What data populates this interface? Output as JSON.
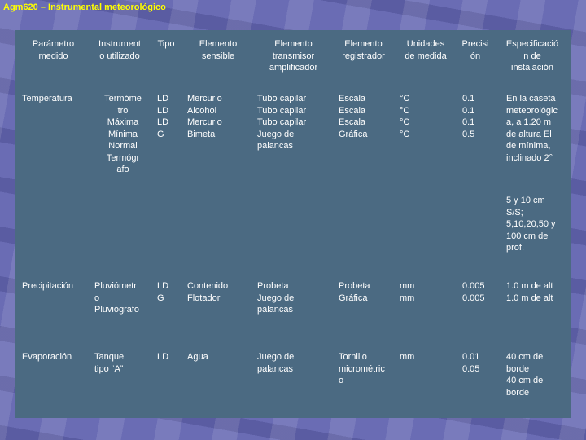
{
  "title": "Agm620 – Instrumental meteorológico",
  "headers": {
    "parametro": "Parámetro\nmedido",
    "instrumento": "Instrument\no utilizado",
    "tipo": "Tipo",
    "elemento_sensible": "Elemento\nsensible",
    "elemento_transmisor": "Elemento\ntransmisor\namplificador",
    "elemento_registrador": "Elemento\nregistrador",
    "unidades": "Unidades\nde medida",
    "precision": "Precisi\nón",
    "especificacion": "Especificació\nn de\ninstalación"
  },
  "rows": [
    {
      "parametro": "Temperatura",
      "instrumento": "  Termóme\ntro\nMáxima\nMínima\nNormal\nTermógr\nafo",
      "tipo": "LD\nLD\nLD\nG",
      "elemento_sensible": "Mercurio\nAlcohol\nMercurio\nBimetal",
      "elemento_transmisor": "Tubo capilar\nTubo capilar\nTubo capilar\nJuego de\npalancas",
      "elemento_registrador": "Escala\nEscala\nEscala\nGráfica",
      "unidades": "°C\n°C\n°C\n°C",
      "precision": "0.1\n0.1\n0.1\n0.5",
      "especificacion": "En la caseta\nmeteorológic\na, a 1.20 m\nde altura El\nde mínima,\ninclinado 2°",
      "especificacion_extra": "5 y 10 cm\nS/S;\n5,10,20,50 y\n100 cm de\nprof."
    },
    {
      "parametro": "Precipitación",
      "instrumento": "Pluviómetr\no\nPluviógrafo",
      "tipo": "LD\nG",
      "elemento_sensible": "Contenido\nFlotador",
      "elemento_transmisor": "Probeta\nJuego de\npalancas",
      "elemento_registrador": "Probeta\nGráfica",
      "unidades": "mm\nmm",
      "precision": "0.005\n0.005",
      "especificacion": "1.0 m de alt\n1.0 m de alt"
    },
    {
      "parametro": "Evaporación",
      "instrumento": "Tanque\ntipo “A”",
      "tipo": "LD",
      "elemento_sensible": "Agua",
      "elemento_transmisor": "Juego de\npalancas",
      "elemento_registrador": "Tornillo\nmicrométric\no",
      "unidades": "mm",
      "precision": "0.01\n0.05",
      "especificacion": "40 cm del\nborde\n40 cm del\nborde"
    }
  ]
}
